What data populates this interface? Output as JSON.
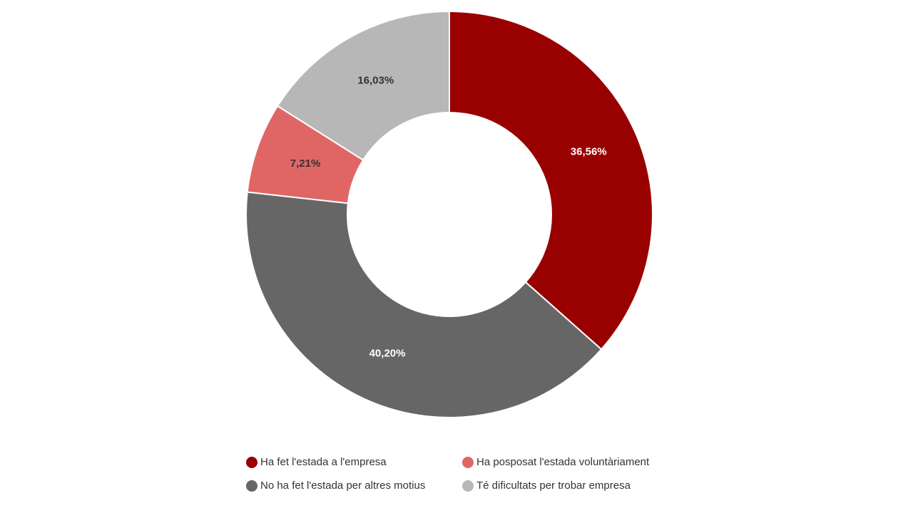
{
  "chart_data": {
    "type": "donut",
    "categories": [
      "Ha fet l'estada a l'empresa",
      "No ha fet l'estada per altres motius",
      "Ha posposat l'estada voluntàriament",
      "Té dificultats per trobar empresa"
    ],
    "values": [
      36.56,
      40.2,
      7.21,
      16.03
    ],
    "value_labels": [
      "36,56%",
      "40,20%",
      "7,21%",
      "16,03%"
    ],
    "colors": [
      "#990000",
      "#666666",
      "#e06666",
      "#b7b7b7"
    ],
    "label_colors": [
      "#ffffff",
      "#ffffff",
      "#333333",
      "#333333"
    ]
  }
}
